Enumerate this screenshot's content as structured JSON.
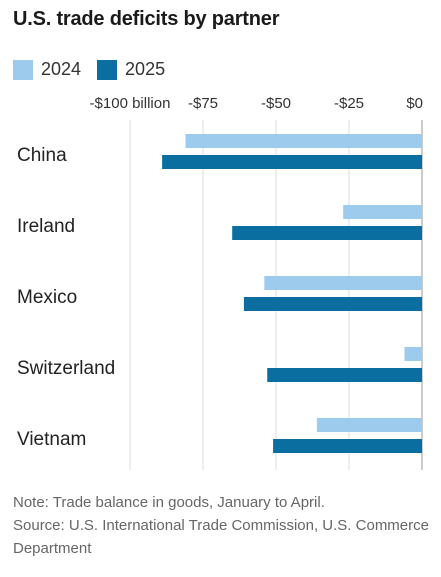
{
  "title": "U.S. trade deficits by partner",
  "legend": [
    {
      "label": "2024",
      "color": "#9dcbee"
    },
    {
      "label": "2025",
      "color": "#0a6ea0"
    }
  ],
  "notes": {
    "note": "Note: Trade balance in goods, January to April.",
    "source": "Source: U.S. International Trade Commission, U.S. Commerce Department"
  },
  "chart_data": {
    "type": "bar",
    "orientation": "horizontal",
    "categories": [
      "China",
      "Ireland",
      "Mexico",
      "Switzerland",
      "Vietnam"
    ],
    "series": [
      {
        "name": "2024",
        "color": "#9dcbee",
        "values": [
          -81,
          -27,
          -54,
          -6,
          -36
        ]
      },
      {
        "name": "2025",
        "color": "#0a6ea0",
        "values": [
          -89,
          -65,
          -61,
          -53,
          -51
        ]
      }
    ],
    "xlim": [
      -100,
      0
    ],
    "ticks": [
      {
        "value": -100,
        "label": "-$100 billion"
      },
      {
        "value": -75,
        "label": "-$75"
      },
      {
        "value": -50,
        "label": "-$50"
      },
      {
        "value": -25,
        "label": "-$25"
      },
      {
        "value": 0,
        "label": "$0"
      }
    ],
    "grid": true,
    "legend_position": "top-left"
  }
}
